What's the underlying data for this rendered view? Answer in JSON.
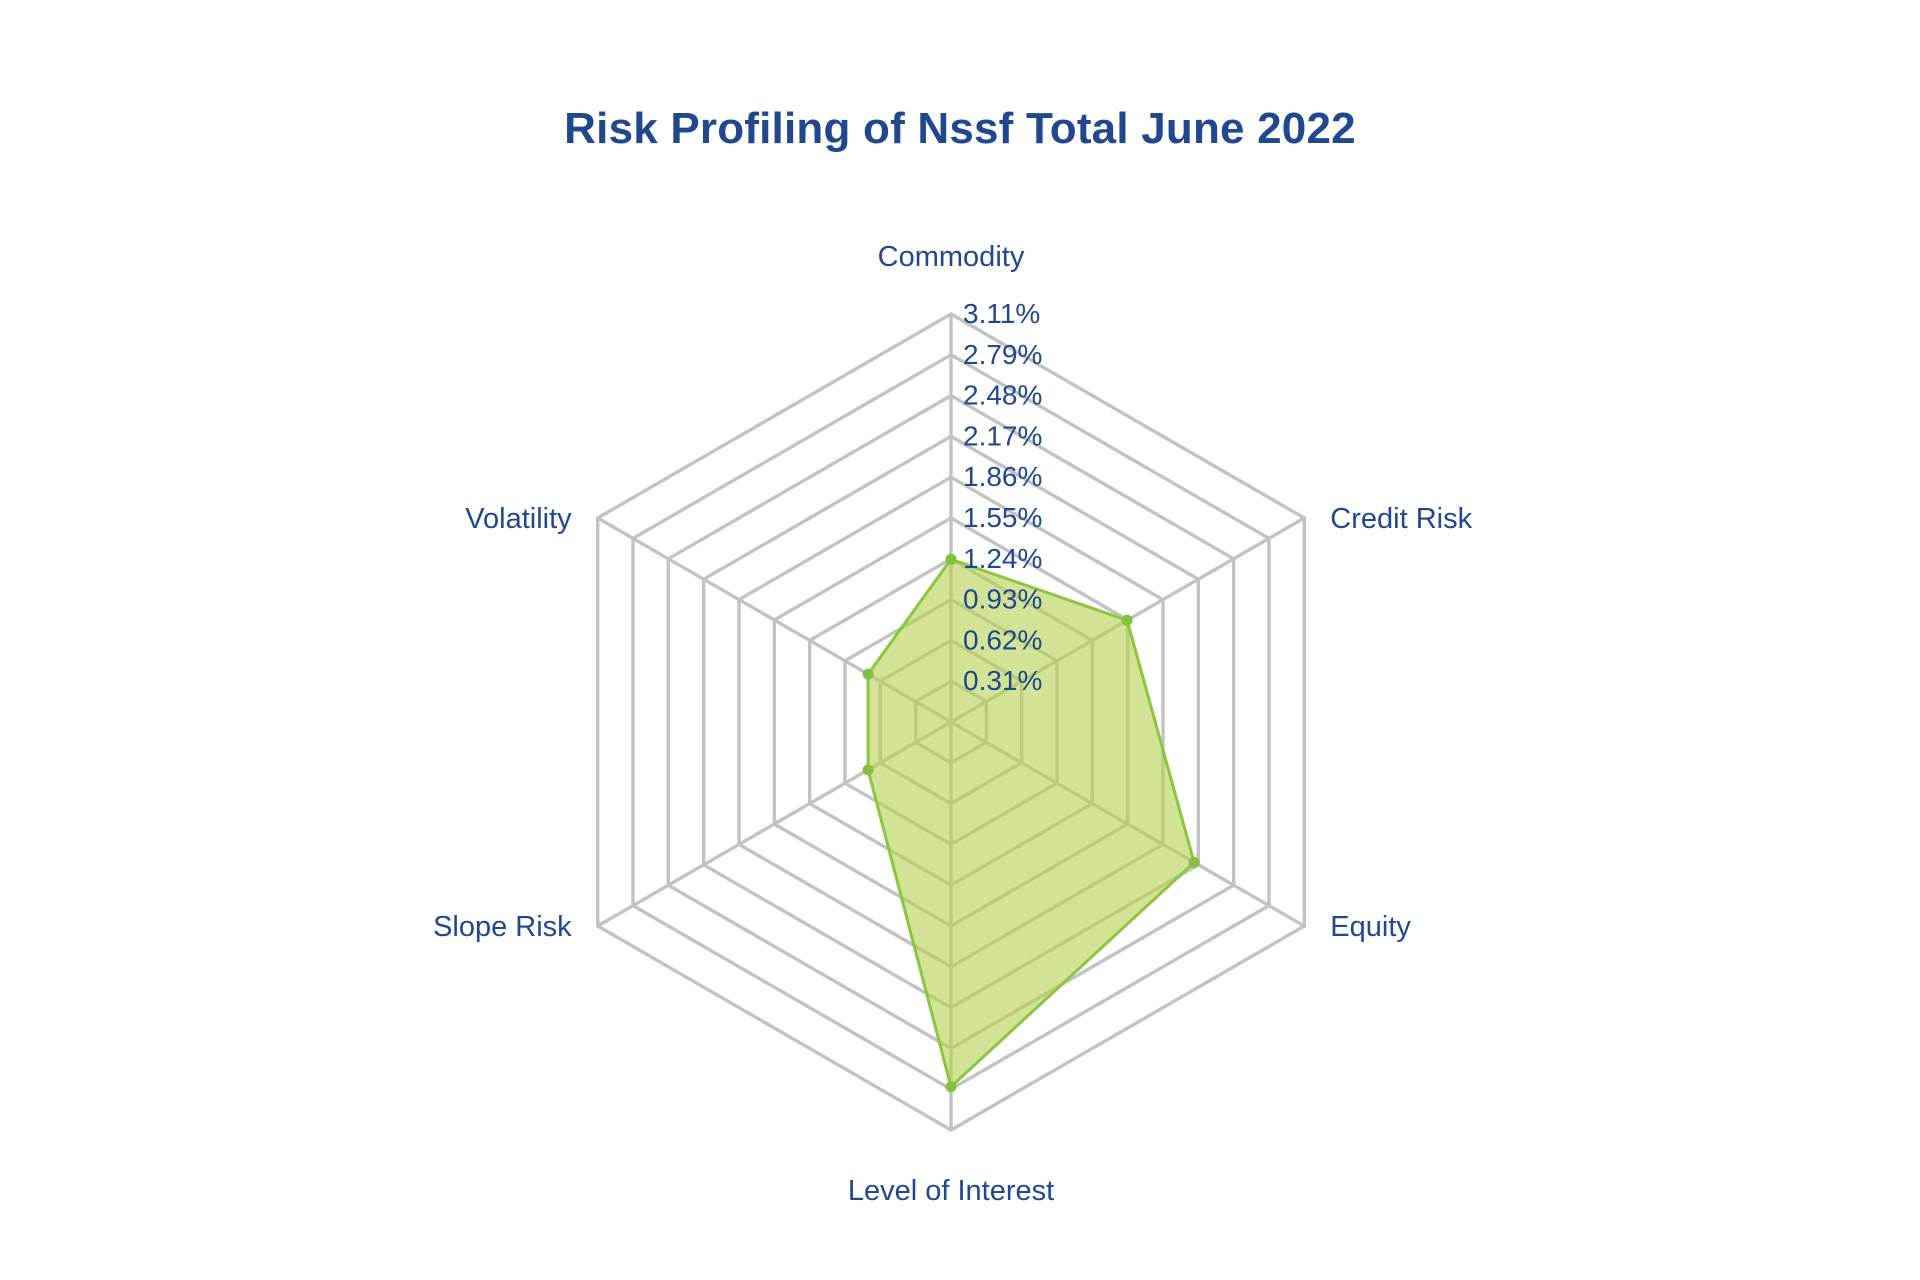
{
  "chart_data": {
    "type": "radar",
    "title": "Risk Profiling of Nssf Total June 2022",
    "axes": [
      "Commodity",
      "Credit Risk",
      "Equity",
      "Level of Interest",
      "Slope Risk",
      "Volatility"
    ],
    "tick_labels": [
      "3.11%",
      "2.79%",
      "2.48%",
      "2.17%",
      "1.86%",
      "1.55%",
      "1.24%",
      "0.93%",
      "0.62%",
      "0.31%"
    ],
    "rmax": 3.11,
    "values": [
      1.24,
      1.55,
      2.14,
      2.78,
      0.73,
      0.73
    ],
    "unit": "%",
    "grid": true,
    "legend": "none",
    "colors": {
      "fill": "#b5d14f",
      "stroke": "#8cc63f",
      "point": "#84c13e",
      "grid": "#c3c3c3",
      "text": "#21478f"
    }
  }
}
